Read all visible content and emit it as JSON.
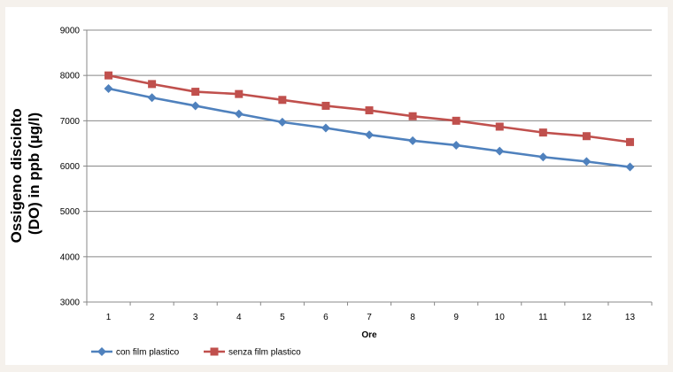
{
  "chart_data": {
    "type": "line",
    "title": "",
    "xlabel": "Ore",
    "ylabel_lines": [
      "Ossigeno disciolto",
      "(DO) in ppb (µg/l)"
    ],
    "categories": [
      "1",
      "2",
      "3",
      "4",
      "5",
      "6",
      "7",
      "8",
      "9",
      "10",
      "11",
      "12",
      "13"
    ],
    "ylim": [
      3000,
      9000
    ],
    "yticks": [
      "3000",
      "4000",
      "5000",
      "6000",
      "7000",
      "8000",
      "9000"
    ],
    "grid": "horizontal",
    "legend_position": "bottom-left",
    "series": [
      {
        "name": "con film plastico",
        "color": "#4f81bd",
        "marker": "diamond",
        "values": [
          7710,
          7510,
          7330,
          7150,
          6970,
          6840,
          6690,
          6560,
          6460,
          6330,
          6200,
          6100,
          5980
        ]
      },
      {
        "name": "senza film plastico",
        "color": "#c0504d",
        "marker": "square",
        "values": [
          8000,
          7810,
          7640,
          7590,
          7460,
          7330,
          7230,
          7100,
          7000,
          6870,
          6740,
          6660,
          6530
        ]
      }
    ]
  }
}
